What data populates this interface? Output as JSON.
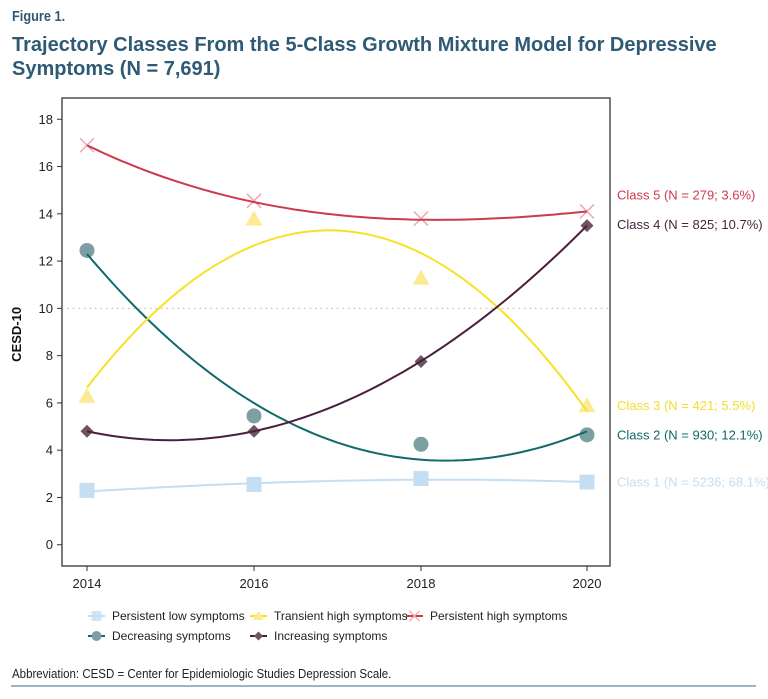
{
  "figure": {
    "label": "Figure 1.",
    "title": "Trajectory Classes From the 5-Class Growth Mixture Model for Depressive Symptoms (N = 7,691)",
    "footnote": "Abbreviation: CESD = Center for Epidemiologic Studies Depression Scale."
  },
  "chart_data": {
    "type": "line",
    "title": "Trajectory Classes From the 5-Class Growth Mixture Model for Depressive Symptoms (N = 7,691)",
    "xlabel": "",
    "ylabel": "CESD-10",
    "x": [
      2014,
      2016,
      2018,
      2020
    ],
    "x_tick_labels": [
      "2014",
      "2016",
      "2018",
      "2020"
    ],
    "y_ticks": [
      0,
      2,
      4,
      6,
      8,
      10,
      12,
      14,
      16,
      18
    ],
    "y_tick_labels": [
      "0",
      "2",
      "4",
      "6",
      "8",
      "10",
      "12",
      "14",
      "16",
      "18"
    ],
    "ylim": [
      -0.9,
      18.9
    ],
    "reference_line": 10,
    "grid": false,
    "legend_position": "bottom",
    "series": [
      {
        "name": "Persistent low symptoms",
        "class_label": "Class 1 (N = 5236; 68.1%)",
        "color": "#c5def2",
        "marker": "square",
        "observed": [
          2.3,
          2.55,
          2.8,
          2.65
        ],
        "fitted": [
          2.25,
          2.6,
          2.75,
          2.65
        ]
      },
      {
        "name": "Decreasing symptoms",
        "class_label": "Class 2 (N = 930; 12.1%)",
        "color": "#0f6a6b",
        "marker_color": "#7d9fa3",
        "marker": "circle",
        "observed": [
          12.45,
          5.45,
          4.25,
          4.65
        ],
        "fitted": [
          12.3,
          6.0,
          3.6,
          4.8
        ]
      },
      {
        "name": "Transient high symptoms",
        "class_label": "Class 3 (N = 421; 5.5%)",
        "color": "#f6e227",
        "marker_color": "#fdea95",
        "marker": "triangle",
        "observed": [
          6.3,
          13.8,
          11.3,
          5.9
        ],
        "fitted": [
          6.65,
          12.65,
          12.35,
          5.65
        ]
      },
      {
        "name": "Increasing symptoms",
        "class_label": "Class 4 (N = 825; 10.7%)",
        "color": "#4a1f3d",
        "marker_color": "#6f5464",
        "marker": "diamond",
        "observed": [
          4.8,
          4.8,
          7.75,
          13.5
        ],
        "fitted": [
          4.8,
          4.8,
          7.75,
          13.5
        ]
      },
      {
        "name": "Persistent high symptoms",
        "class_label": "Class 5 (N = 279; 3.6%)",
        "color": "#cc3a4b",
        "marker_color": "#f0a6b0",
        "marker": "x",
        "observed": [
          16.9,
          14.55,
          13.8,
          14.1
        ],
        "fitted": [
          16.9,
          14.5,
          13.75,
          14.1
        ]
      }
    ],
    "class_label_order": [
      5,
      4,
      3,
      2,
      1
    ],
    "legend_order": [
      "Persistent low symptoms",
      "Transient high symptoms",
      "Persistent high symptoms",
      "Decreasing symptoms",
      "Increasing symptoms"
    ]
  }
}
